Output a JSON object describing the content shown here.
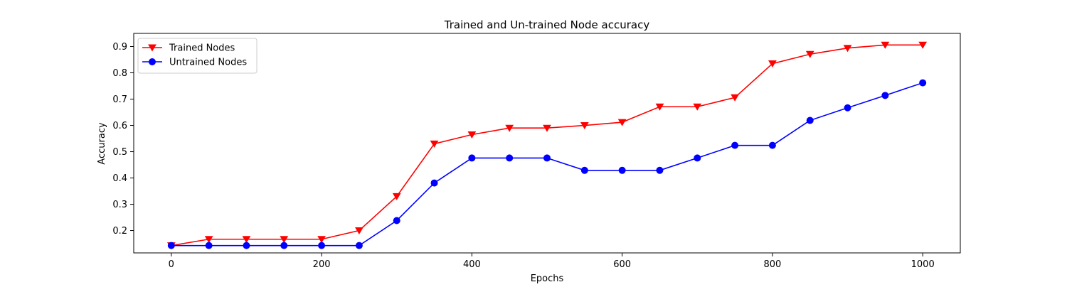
{
  "chart_data": {
    "type": "line",
    "title": "Trained and Un-trained Node accuracy",
    "xlabel": "Epochs",
    "ylabel": "Accuracy",
    "xlim": [
      -50,
      1050
    ],
    "ylim": [
      0.115,
      0.95
    ],
    "x_ticks": [
      0,
      200,
      400,
      600,
      800,
      1000
    ],
    "y_ticks": [
      0.2,
      0.3,
      0.4,
      0.5,
      0.6,
      0.7,
      0.8,
      0.9
    ],
    "grid": false,
    "legend_position": "top-left",
    "x": [
      0,
      50,
      100,
      150,
      200,
      250,
      300,
      350,
      400,
      450,
      500,
      550,
      600,
      650,
      700,
      750,
      800,
      850,
      900,
      950,
      1000
    ],
    "series": [
      {
        "name": "Trained Nodes",
        "color": "#ff0000",
        "marker": "triangle-down",
        "values": [
          0.143,
          0.167,
          0.167,
          0.167,
          0.167,
          0.2,
          0.33,
          0.53,
          0.565,
          0.59,
          0.59,
          0.6,
          0.612,
          0.671,
          0.671,
          0.706,
          0.835,
          0.871,
          0.894,
          0.906,
          0.906
        ]
      },
      {
        "name": "Untrained Nodes",
        "color": "#0000ff",
        "marker": "circle",
        "values": [
          0.143,
          0.143,
          0.143,
          0.143,
          0.143,
          0.143,
          0.238,
          0.381,
          0.476,
          0.476,
          0.476,
          0.429,
          0.429,
          0.429,
          0.476,
          0.524,
          0.524,
          0.619,
          0.667,
          0.714,
          0.762
        ]
      }
    ]
  }
}
